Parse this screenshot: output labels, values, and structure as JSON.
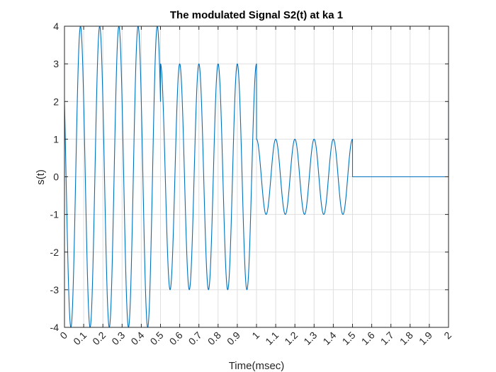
{
  "chart_data": {
    "type": "line",
    "title": "The modulated Signal S2(t) at ka 1",
    "xlabel": "Time(msec)",
    "ylabel": "s(t)",
    "xlim": [
      0,
      2
    ],
    "ylim": [
      -4,
      4
    ],
    "grid": true,
    "x_ticks": [
      "0",
      "0.1",
      "0.2",
      "0.3",
      "0.4",
      "0.5",
      "0.6",
      "0.7",
      "0.8",
      "0.9",
      "1",
      "1.1",
      "1.2",
      "1.3",
      "1.4",
      "1.5",
      "1.6",
      "1.7",
      "1.8",
      "1.9",
      "2"
    ],
    "y_ticks": [
      "-4",
      "-3",
      "-2",
      "-1",
      "0",
      "1",
      "2",
      "3",
      "4"
    ],
    "line_color": "#0072bd",
    "series": [
      {
        "carrier_frequency_khz": 10,
        "segments": [
          {
            "t_start": 0.0,
            "t_end": 0.5,
            "amplitude": 4,
            "start_value": 2
          },
          {
            "t_start": 0.5,
            "t_end": 1.0,
            "amplitude": 3,
            "start_value": 3
          },
          {
            "t_start": 1.0,
            "t_end": 1.5,
            "amplitude": 1,
            "start_value": 1
          },
          {
            "t_start": 1.5,
            "t_end": 2.0,
            "amplitude": 0,
            "start_value": 0
          }
        ],
        "end_value": 2
      }
    ]
  }
}
